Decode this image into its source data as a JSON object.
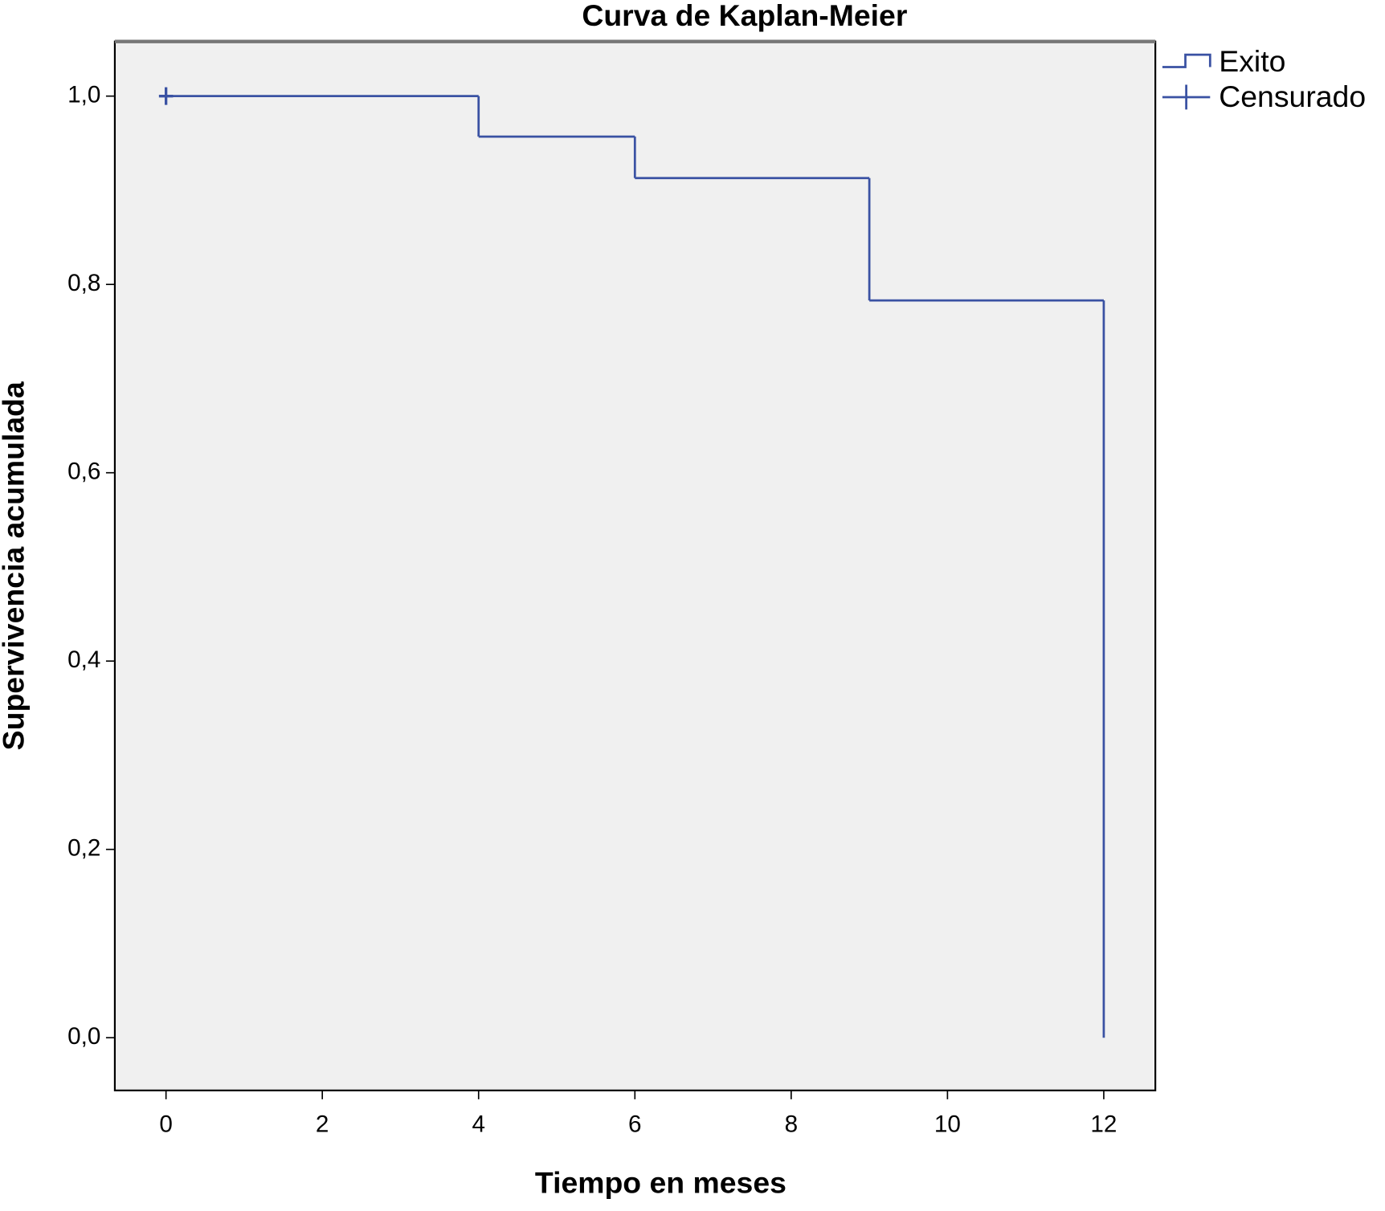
{
  "chart_data": {
    "type": "step",
    "title": "Curva de Kaplan-Meier",
    "x_label": "Tiempo en meses",
    "y_label": "Supervivencia acumulada",
    "series": [
      {
        "name": "Exito",
        "color": "#3a52a3",
        "x": [
          0,
          4,
          6,
          9,
          12
        ],
        "values": [
          1.0,
          0.957,
          0.913,
          0.783,
          0.0
        ]
      }
    ],
    "censored": {
      "name": "Censurado",
      "color": "#3a52a3",
      "x": [
        0
      ],
      "values": [
        1.0
      ]
    },
    "xlim": [
      -0.655,
      12.66
    ],
    "ylim": [
      -0.056,
      1.058
    ],
    "xticks": [
      0,
      2,
      4,
      6,
      8,
      10,
      12
    ],
    "yticks": [
      {
        "value": 0,
        "label": "0,0"
      },
      {
        "value": 0.2,
        "label": "0,2"
      },
      {
        "value": 0.4,
        "label": "0,4"
      },
      {
        "value": 0.6,
        "label": "0,6"
      },
      {
        "value": 0.8,
        "label": "0,8"
      },
      {
        "value": 1,
        "label": "1,0"
      }
    ],
    "grid": false
  }
}
